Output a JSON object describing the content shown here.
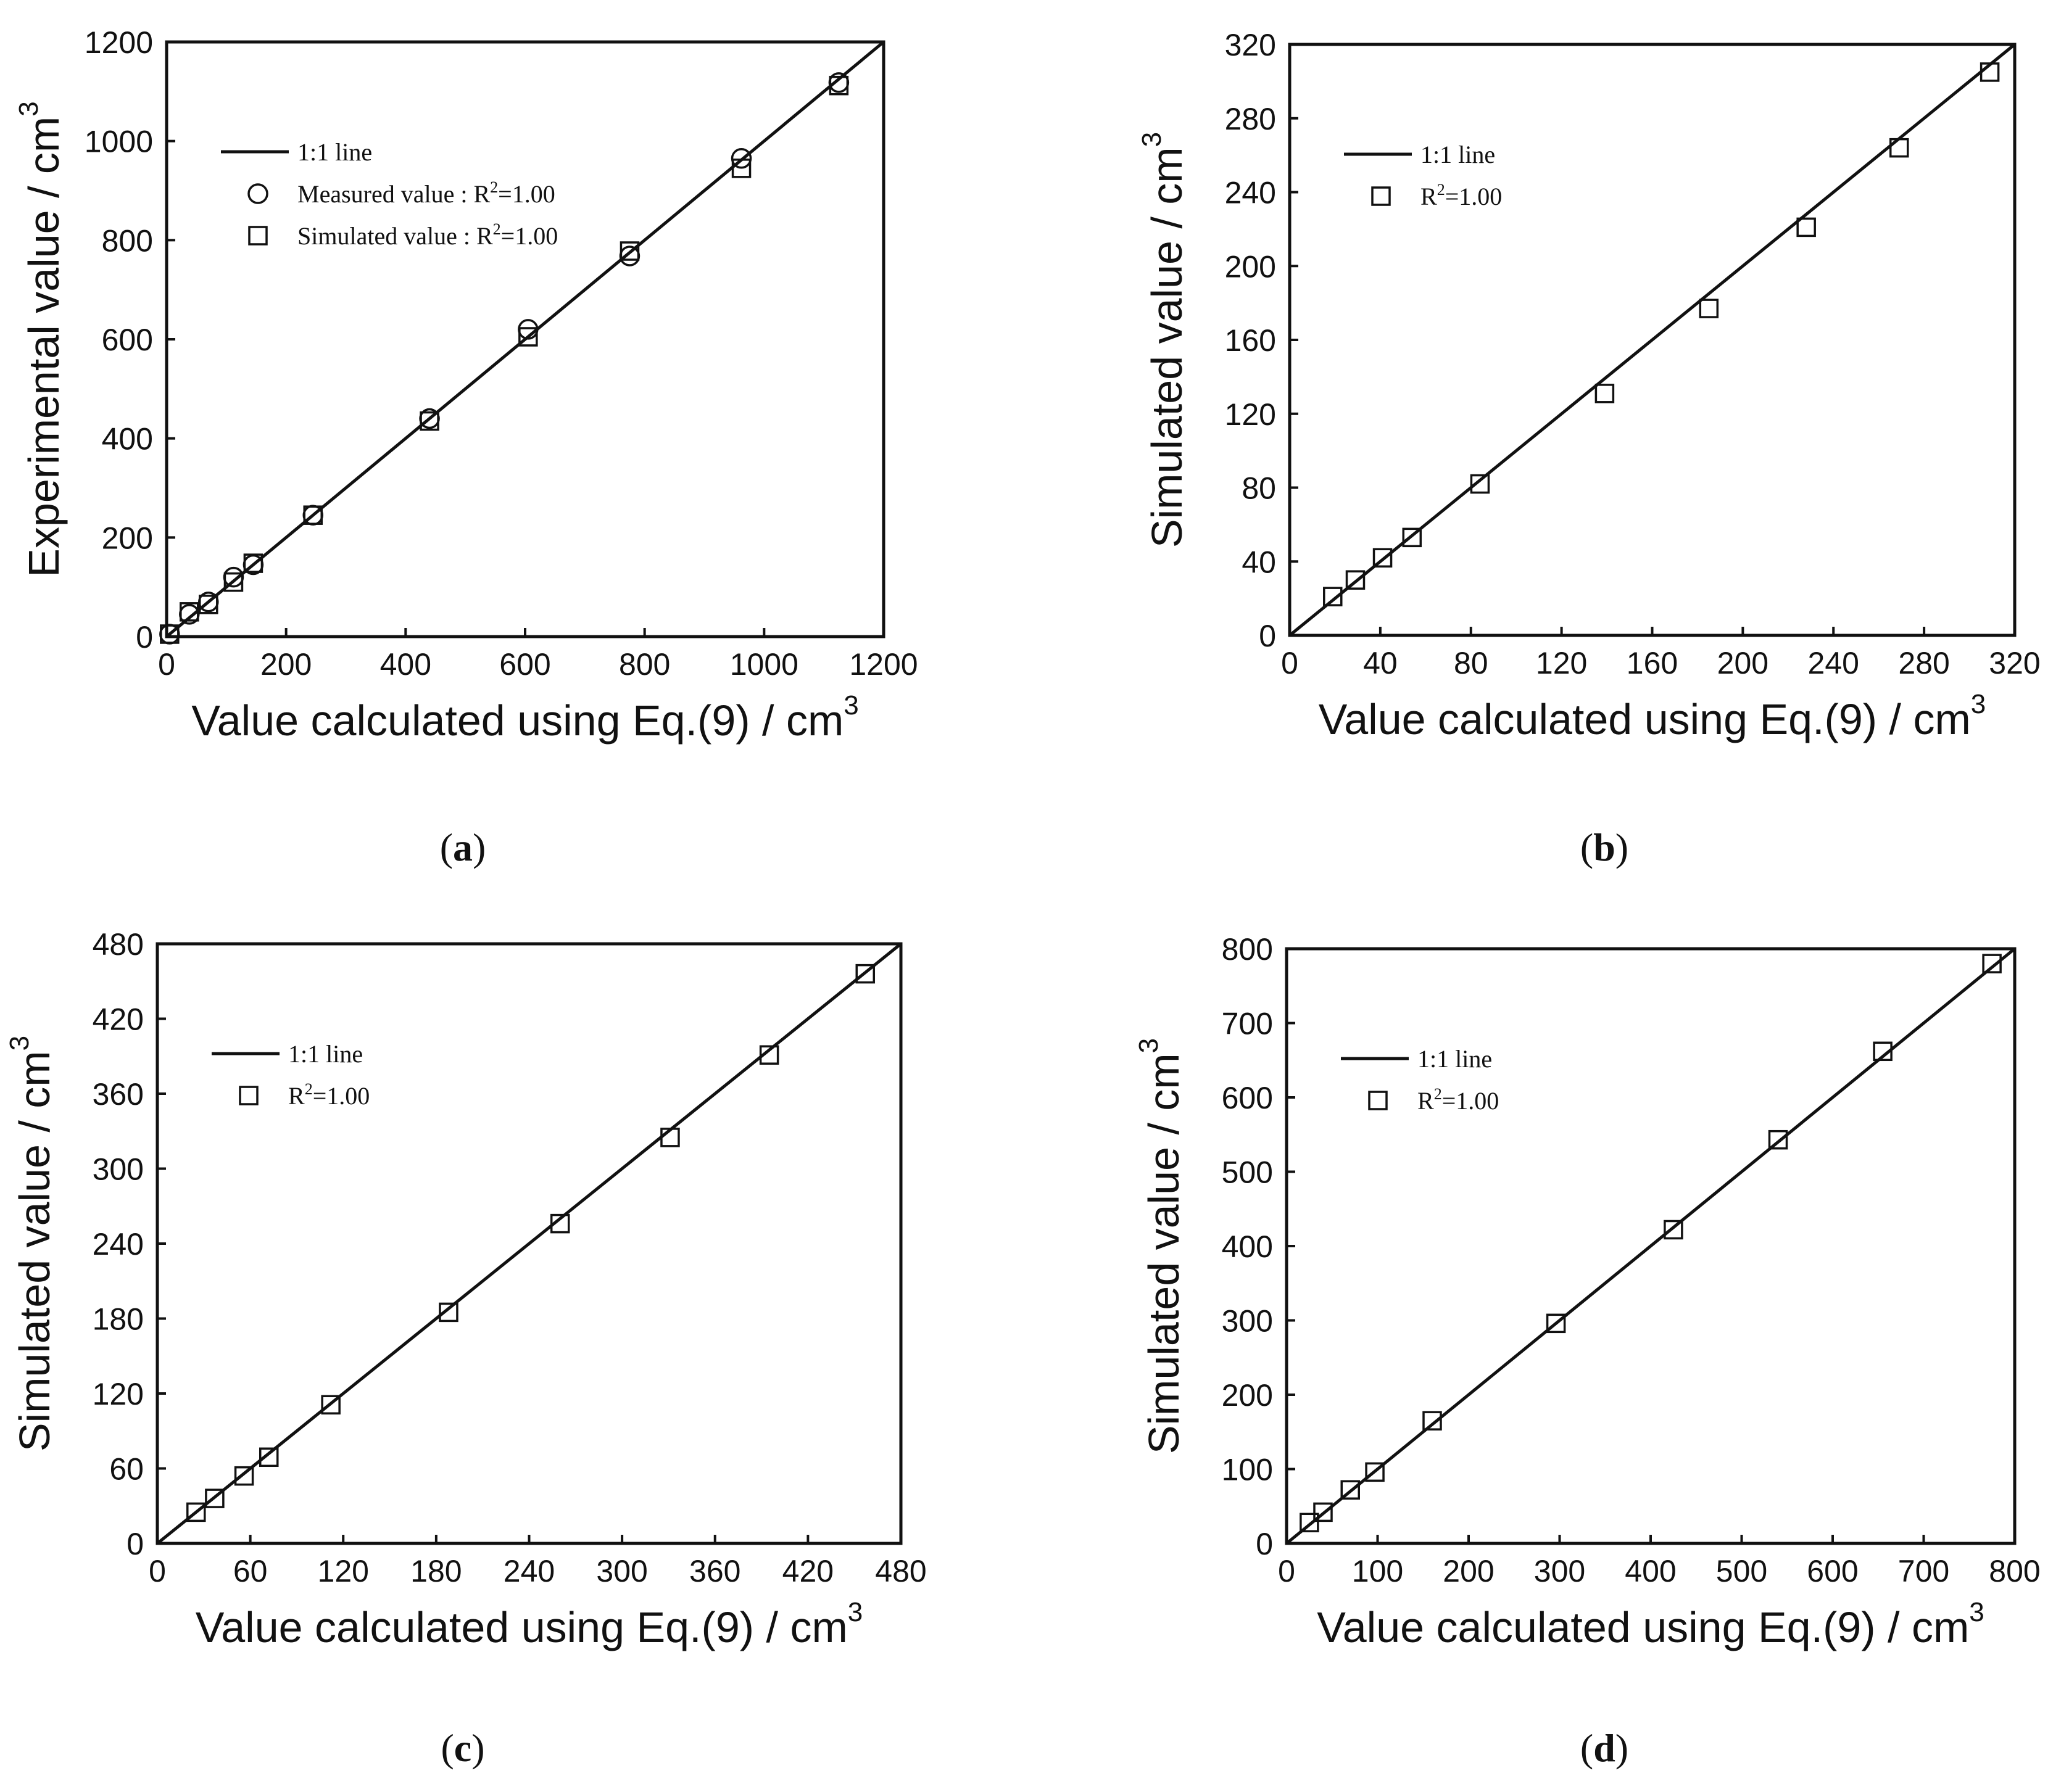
{
  "figure": {
    "background": "#ffffff",
    "ink": "#111111"
  },
  "chart_data": [
    {
      "panel": "a",
      "type": "scatter",
      "caption_letter": "a",
      "xlabel": "Value calculated using Eq.(9) / cm",
      "xlabel_sup": "3",
      "ylabel": "Experimental value / cm",
      "ylabel_sup": "3",
      "xlim": [
        0,
        1200
      ],
      "ylim": [
        0,
        1200
      ],
      "xticks": [
        0,
        200,
        400,
        600,
        800,
        1000,
        1200
      ],
      "yticks": [
        0,
        200,
        400,
        600,
        800,
        1000,
        1200
      ],
      "grid": false,
      "legend_position": "top-left",
      "reference_line": {
        "name": "1:1 line",
        "from": [
          0,
          0
        ],
        "to": [
          1200,
          1200
        ]
      },
      "series": [
        {
          "name": "Measured value",
          "name_sep": " :  ",
          "r2_prefix": "R",
          "r2_sup": "2",
          "r2_value": "=1.00",
          "marker": "circle",
          "x": [
            5,
            38,
            70,
            112,
            145,
            245,
            440,
            605,
            775,
            962,
            1125
          ],
          "y": [
            5,
            45,
            70,
            120,
            145,
            245,
            440,
            620,
            768,
            965,
            1118
          ]
        },
        {
          "name": "Simulated value",
          "name_sep": " :  ",
          "r2_prefix": "R",
          "r2_sup": "2",
          "r2_value": "=1.00",
          "marker": "square",
          "x": [
            5,
            38,
            70,
            112,
            145,
            245,
            440,
            605,
            775,
            962,
            1125
          ],
          "y": [
            5,
            50,
            65,
            110,
            148,
            245,
            435,
            605,
            778,
            945,
            1112
          ]
        }
      ]
    },
    {
      "panel": "b",
      "type": "scatter",
      "caption_letter": "b",
      "xlabel": "Value calculated using Eq.(9) / cm",
      "xlabel_sup": "3",
      "ylabel": "Simulated value / cm",
      "ylabel_sup": "3",
      "xlim": [
        0,
        320
      ],
      "ylim": [
        0,
        320
      ],
      "xticks": [
        0,
        40,
        80,
        120,
        160,
        200,
        240,
        280,
        320
      ],
      "yticks": [
        0,
        40,
        80,
        120,
        160,
        200,
        240,
        280,
        320
      ],
      "grid": false,
      "legend_position": "top-left",
      "reference_line": {
        "name": "1:1 line",
        "from": [
          0,
          0
        ],
        "to": [
          320,
          320
        ]
      },
      "series": [
        {
          "name": "",
          "name_sep": "",
          "r2_prefix": "R",
          "r2_sup": "2",
          "r2_value": "=1.00",
          "marker": "square",
          "x": [
            19,
            29,
            41,
            54,
            84,
            139,
            185,
            228,
            269,
            309
          ],
          "y": [
            21,
            30,
            42,
            53,
            82,
            131,
            177,
            221,
            264,
            305
          ]
        }
      ]
    },
    {
      "panel": "c",
      "type": "scatter",
      "caption_letter": "c",
      "xlabel": "Value calculated using Eq.(9) / cm",
      "xlabel_sup": "3",
      "ylabel": "Simulated value / cm",
      "ylabel_sup": "3",
      "xlim": [
        0,
        480
      ],
      "ylim": [
        0,
        480
      ],
      "xticks": [
        0,
        60,
        120,
        180,
        240,
        300,
        360,
        420,
        480
      ],
      "yticks": [
        0,
        60,
        120,
        180,
        240,
        300,
        360,
        420,
        480
      ],
      "grid": false,
      "legend_position": "top-left",
      "reference_line": {
        "name": "1:1 line",
        "from": [
          0,
          0
        ],
        "to": [
          480,
          480
        ]
      },
      "series": [
        {
          "name": "",
          "name_sep": "",
          "r2_prefix": "R",
          "r2_sup": "2",
          "r2_value": "=1.00",
          "marker": "square",
          "x": [
            25,
            37,
            56,
            72,
            112,
            188,
            260,
            331,
            395,
            457
          ],
          "y": [
            25,
            36,
            54,
            69,
            111,
            185,
            256,
            325,
            391,
            456
          ]
        }
      ]
    },
    {
      "panel": "d",
      "type": "scatter",
      "caption_letter": "d",
      "xlabel": "Value calculated using Eq.(9) / cm",
      "xlabel_sup": "3",
      "ylabel": "Simulated value / cm",
      "ylabel_sup": "3",
      "xlim": [
        0,
        800
      ],
      "ylim": [
        0,
        800
      ],
      "xticks": [
        0,
        100,
        200,
        300,
        400,
        500,
        600,
        700,
        800
      ],
      "yticks": [
        0,
        100,
        200,
        300,
        400,
        500,
        600,
        700,
        800
      ],
      "grid": false,
      "legend_position": "top-left",
      "reference_line": {
        "name": "1:1 line",
        "from": [
          0,
          0
        ],
        "to": [
          800,
          800
        ]
      },
      "series": [
        {
          "name": "",
          "name_sep": "",
          "r2_prefix": "R",
          "r2_sup": "2",
          "r2_value": "=1.00",
          "marker": "square",
          "x": [
            25,
            40,
            70,
            97,
            160,
            296,
            425,
            540,
            655,
            775
          ],
          "y": [
            28,
            42,
            72,
            96,
            165,
            296,
            422,
            543,
            662,
            780
          ]
        }
      ]
    }
  ]
}
